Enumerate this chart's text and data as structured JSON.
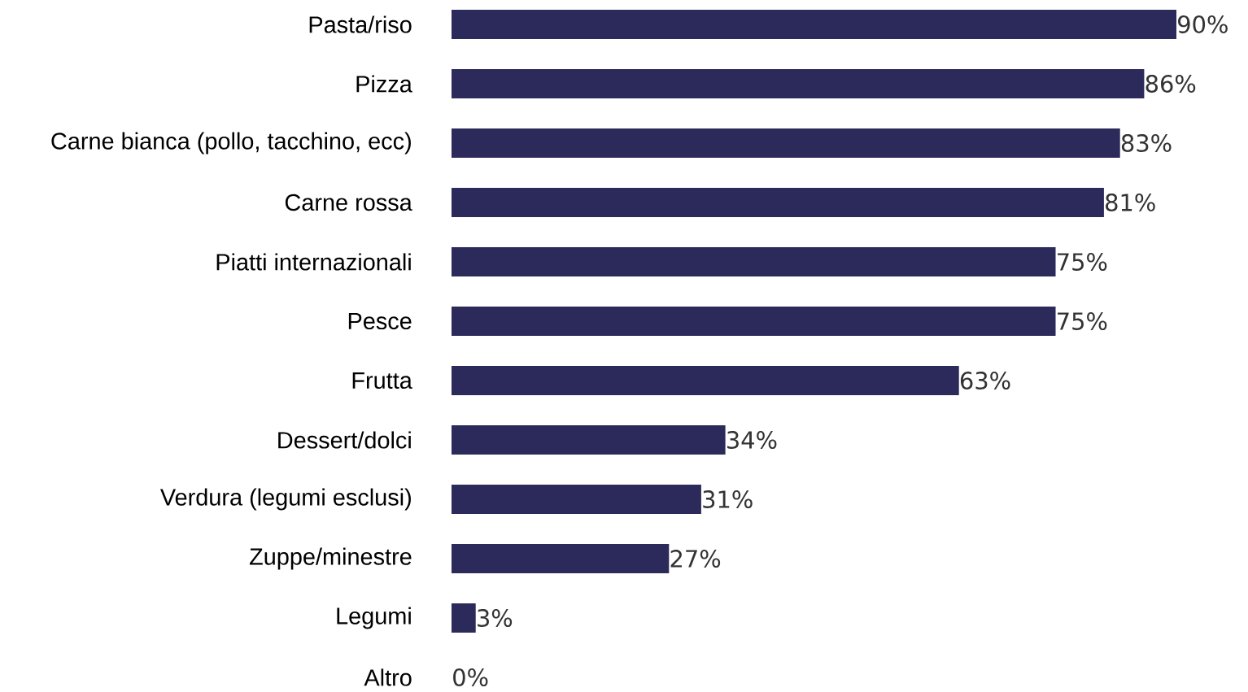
{
  "chart_data": {
    "type": "bar",
    "orientation": "horizontal",
    "color": "#2b2a5a",
    "categories": [
      "Pasta/riso",
      "Pizza",
      "Carne bianca (pollo, tacchino, ecc)",
      "Carne rossa",
      "Piatti internazionali",
      "Pesce",
      "Frutta",
      "Dessert/dolci",
      "Verdura (legumi esclusi)",
      "Zuppe/minestre",
      "Legumi",
      "Altro"
    ],
    "values": [
      90,
      86,
      83,
      81,
      75,
      75,
      63,
      34,
      31,
      27,
      3,
      0
    ],
    "value_labels": [
      "90%",
      "86%",
      "83%",
      "81%",
      "75%",
      "75%",
      "63%",
      "34%",
      "31%",
      "27%",
      "3%",
      "0%"
    ]
  }
}
